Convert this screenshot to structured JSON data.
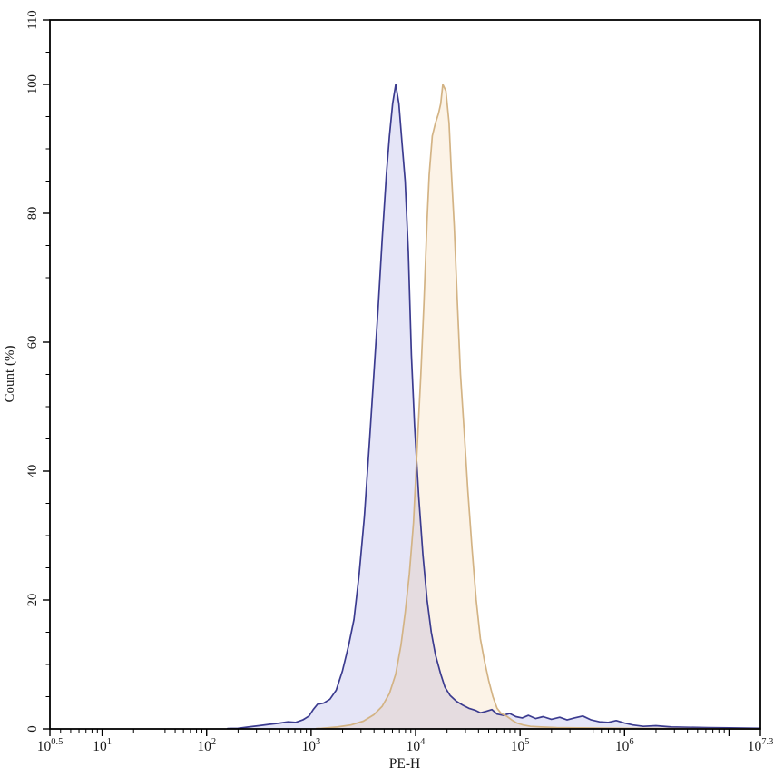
{
  "chart_data": {
    "type": "area",
    "subtype": "flow-cytometry-histogram",
    "title": "",
    "xlabel": "PE-H",
    "ylabel": "Count (%)",
    "x_scale": "log10",
    "xlim_log": [
      0.5,
      7.3
    ],
    "ylim": [
      0,
      110
    ],
    "grid": false,
    "legend": "none",
    "frame": true,
    "axis_color": "#000000",
    "x_ticks": [
      {
        "log": 0.5,
        "base": "10",
        "exp": "0.5",
        "labeled": true
      },
      {
        "log": 1.0,
        "base": "10",
        "exp": "1",
        "labeled": true
      },
      {
        "log": 2.0,
        "base": "10",
        "exp": "2",
        "labeled": true
      },
      {
        "log": 3.0,
        "base": "10",
        "exp": "3",
        "labeled": true
      },
      {
        "log": 4.0,
        "base": "10",
        "exp": "4",
        "labeled": true
      },
      {
        "log": 5.0,
        "base": "10",
        "exp": "5",
        "labeled": true
      },
      {
        "log": 6.0,
        "base": "10",
        "exp": "6",
        "labeled": true
      },
      {
        "log": 7.0,
        "base": "10",
        "exp": "7",
        "labeled": false
      },
      {
        "log": 7.3,
        "base": "10",
        "exp": "7.3",
        "labeled": true
      }
    ],
    "y_ticks_labeled": [
      0,
      20,
      40,
      60,
      80,
      100,
      110
    ],
    "y_minor_step": 5,
    "series": [
      {
        "name": "blue",
        "peak_log10": 3.81,
        "peak_percent": 100,
        "stroke": "#3b3b8f",
        "fill": "rgba(95,95,205,0.16)",
        "points": [
          [
            2.2,
            0.05
          ],
          [
            2.3,
            0.1
          ],
          [
            2.4,
            0.3
          ],
          [
            2.5,
            0.5
          ],
          [
            2.6,
            0.7
          ],
          [
            2.7,
            0.9
          ],
          [
            2.78,
            1.1
          ],
          [
            2.85,
            1.0
          ],
          [
            2.92,
            1.4
          ],
          [
            2.98,
            2.0
          ],
          [
            3.02,
            3.0
          ],
          [
            3.06,
            3.8
          ],
          [
            3.12,
            4.0
          ],
          [
            3.18,
            4.6
          ],
          [
            3.24,
            6.0
          ],
          [
            3.3,
            9.0
          ],
          [
            3.36,
            13
          ],
          [
            3.41,
            17
          ],
          [
            3.46,
            24
          ],
          [
            3.51,
            33
          ],
          [
            3.56,
            45
          ],
          [
            3.6,
            55
          ],
          [
            3.64,
            65
          ],
          [
            3.68,
            76
          ],
          [
            3.72,
            86
          ],
          [
            3.75,
            92
          ],
          [
            3.78,
            97
          ],
          [
            3.81,
            100
          ],
          [
            3.84,
            97
          ],
          [
            3.87,
            91
          ],
          [
            3.9,
            85
          ],
          [
            3.93,
            74
          ],
          [
            3.96,
            58
          ],
          [
            3.99,
            47
          ],
          [
            4.03,
            36
          ],
          [
            4.07,
            27
          ],
          [
            4.11,
            20
          ],
          [
            4.15,
            15
          ],
          [
            4.19,
            11.5
          ],
          [
            4.24,
            8.5
          ],
          [
            4.28,
            6.5
          ],
          [
            4.33,
            5.2
          ],
          [
            4.39,
            4.3
          ],
          [
            4.45,
            3.7
          ],
          [
            4.51,
            3.2
          ],
          [
            4.57,
            2.9
          ],
          [
            4.62,
            2.5
          ],
          [
            4.67,
            2.7
          ],
          [
            4.73,
            3.0
          ],
          [
            4.78,
            2.3
          ],
          [
            4.84,
            2.1
          ],
          [
            4.9,
            2.4
          ],
          [
            4.96,
            1.9
          ],
          [
            5.02,
            1.7
          ],
          [
            5.08,
            2.1
          ],
          [
            5.15,
            1.6
          ],
          [
            5.22,
            1.9
          ],
          [
            5.3,
            1.5
          ],
          [
            5.38,
            1.8
          ],
          [
            5.45,
            1.4
          ],
          [
            5.52,
            1.7
          ],
          [
            5.6,
            2.0
          ],
          [
            5.68,
            1.4
          ],
          [
            5.76,
            1.1
          ],
          [
            5.84,
            1.0
          ],
          [
            5.92,
            1.3
          ],
          [
            6.0,
            0.9
          ],
          [
            6.08,
            0.6
          ],
          [
            6.18,
            0.4
          ],
          [
            6.3,
            0.5
          ],
          [
            6.45,
            0.3
          ],
          [
            6.6,
            0.25
          ],
          [
            6.8,
            0.2
          ],
          [
            7.0,
            0.15
          ],
          [
            7.3,
            0.1
          ]
        ]
      },
      {
        "name": "orange",
        "peak_log10": 4.26,
        "peak_percent": 100,
        "stroke": "#d3b384",
        "fill": "rgba(230,165,70,0.13)",
        "points": [
          [
            3.05,
            0.05
          ],
          [
            3.1,
            0.1
          ],
          [
            3.25,
            0.3
          ],
          [
            3.38,
            0.6
          ],
          [
            3.5,
            1.2
          ],
          [
            3.6,
            2.2
          ],
          [
            3.68,
            3.5
          ],
          [
            3.75,
            5.5
          ],
          [
            3.81,
            8.5
          ],
          [
            3.86,
            13
          ],
          [
            3.9,
            18
          ],
          [
            3.94,
            24
          ],
          [
            3.98,
            32
          ],
          [
            4.01,
            42
          ],
          [
            4.05,
            55
          ],
          [
            4.08,
            66
          ],
          [
            4.11,
            79
          ],
          [
            4.13,
            86
          ],
          [
            4.16,
            92
          ],
          [
            4.19,
            94
          ],
          [
            4.22,
            95.5
          ],
          [
            4.24,
            97
          ],
          [
            4.26,
            100
          ],
          [
            4.29,
            99
          ],
          [
            4.32,
            94
          ],
          [
            4.34,
            87
          ],
          [
            4.37,
            78
          ],
          [
            4.4,
            66
          ],
          [
            4.43,
            55
          ],
          [
            4.47,
            45
          ],
          [
            4.5,
            37
          ],
          [
            4.54,
            28
          ],
          [
            4.58,
            20
          ],
          [
            4.62,
            14
          ],
          [
            4.66,
            10.5
          ],
          [
            4.7,
            7.5
          ],
          [
            4.74,
            5.0
          ],
          [
            4.78,
            3.2
          ],
          [
            4.82,
            2.4
          ],
          [
            4.87,
            2.0
          ],
          [
            4.92,
            1.4
          ],
          [
            4.97,
            0.9
          ],
          [
            5.03,
            0.6
          ],
          [
            5.1,
            0.4
          ],
          [
            5.2,
            0.3
          ],
          [
            5.35,
            0.2
          ],
          [
            5.6,
            0.15
          ],
          [
            6.0,
            0.1
          ],
          [
            6.5,
            0.05
          ],
          [
            7.3,
            0.0
          ]
        ]
      }
    ]
  }
}
